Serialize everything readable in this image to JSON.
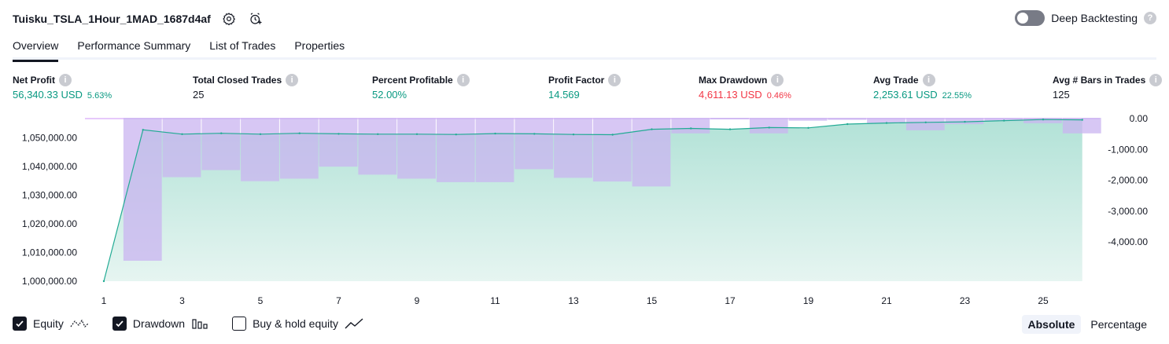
{
  "header": {
    "title": "Tuisku_TSLA_1Hour_1MAD_1687d4af",
    "settings_icon": "gear-icon",
    "alert_icon": "alarm-add-icon",
    "deep_backtesting_label": "Deep Backtesting",
    "deep_backtesting_on": false
  },
  "tabs": [
    {
      "label": "Overview",
      "active": true
    },
    {
      "label": "Performance Summary",
      "active": false
    },
    {
      "label": "List of Trades",
      "active": false
    },
    {
      "label": "Properties",
      "active": false
    }
  ],
  "metrics": [
    {
      "label": "Net Profit",
      "value": "56,340.33 USD",
      "pct": "5.63%",
      "tone": "pos"
    },
    {
      "label": "Total Closed Trades",
      "value": "25",
      "pct": "",
      "tone": "neu"
    },
    {
      "label": "Percent Profitable",
      "value": "52.00%",
      "pct": "",
      "tone": "pos"
    },
    {
      "label": "Profit Factor",
      "value": "14.569",
      "pct": "",
      "tone": "pos"
    },
    {
      "label": "Max Drawdown",
      "value": "4,611.13 USD",
      "pct": "0.46%",
      "tone": "neg"
    },
    {
      "label": "Avg Trade",
      "value": "2,253.61 USD",
      "pct": "22.55%",
      "tone": "pos"
    },
    {
      "label": "Avg # Bars in Trades",
      "value": "125",
      "pct": "",
      "tone": "neu"
    }
  ],
  "chart_data": {
    "type": "area",
    "x_tick_labels": [
      "1",
      "3",
      "5",
      "7",
      "9",
      "11",
      "13",
      "15",
      "17",
      "19",
      "21",
      "23",
      "25"
    ],
    "left_axis_ticks": [
      "1,050,000.00",
      "1,040,000.00",
      "1,030,000.00",
      "1,020,000.00",
      "1,010,000.00",
      "1,000,000.00"
    ],
    "right_axis_ticks": [
      "0.00",
      "-1,000.00",
      "-2,000.00",
      "-3,000.00",
      "-4,000.00"
    ],
    "left_ylim": [
      1000000,
      1057000
    ],
    "right_ylim": [
      -4611,
      0
    ],
    "trades": [
      1,
      2,
      3,
      4,
      5,
      6,
      7,
      8,
      9,
      10,
      11,
      12,
      13,
      14,
      15,
      16,
      17,
      18,
      19,
      20,
      21,
      22,
      23,
      24,
      25,
      26
    ],
    "series": [
      {
        "name": "Equity",
        "color": "#22ab94",
        "values": [
          1000000,
          1052800,
          1051300,
          1051600,
          1051300,
          1051600,
          1051400,
          1051300,
          1051300,
          1051200,
          1051500,
          1051400,
          1051200,
          1051100,
          1053000,
          1053300,
          1053000,
          1053600,
          1053500,
          1054800,
          1055200,
          1055400,
          1055600,
          1056000,
          1056400,
          1056300
        ]
      },
      {
        "name": "Drawdown",
        "color": "#b39ddb",
        "values": [
          0,
          -4611,
          -1900,
          -1670,
          -2030,
          -1950,
          -1560,
          -1820,
          -1950,
          -2060,
          -2060,
          -1640,
          -1920,
          -2040,
          -2200,
          -480,
          0,
          -480,
          -70,
          -40,
          -150,
          -380,
          -180,
          -80,
          -150,
          -480
        ]
      }
    ]
  },
  "legend": [
    {
      "label": "Equity",
      "checked": true,
      "icon": "equity-line-icon"
    },
    {
      "label": "Drawdown",
      "checked": true,
      "icon": "drawdown-bars-icon"
    },
    {
      "label": "Buy & hold equity",
      "checked": false,
      "icon": "buy-hold-line-icon"
    }
  ],
  "modes": [
    {
      "label": "Absolute",
      "active": true
    },
    {
      "label": "Percentage",
      "active": false
    }
  ],
  "colors": {
    "positive": "#089981",
    "negative": "#f23645",
    "equity_line": "#22ab94",
    "drawdown_fill": "#c9b4f0"
  }
}
